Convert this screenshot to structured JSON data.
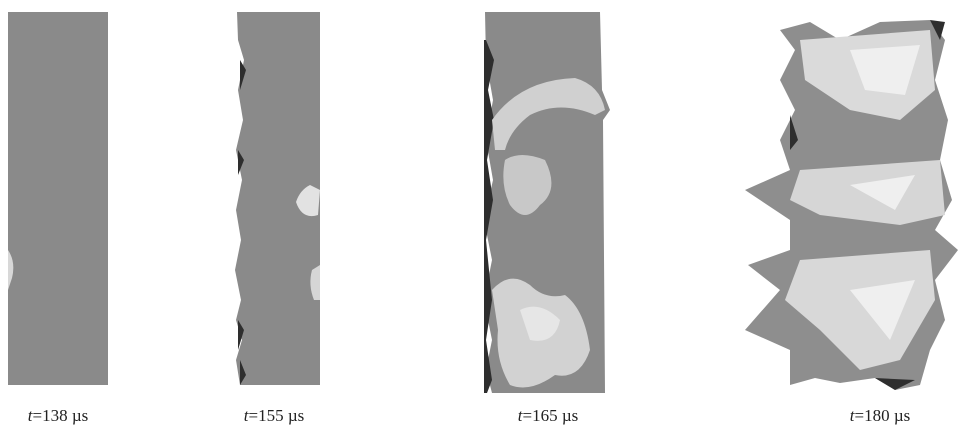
{
  "panels": [
    {
      "symbol": "t",
      "text": "=138 µs"
    },
    {
      "symbol": "t",
      "text": "=155 µs"
    },
    {
      "symbol": "t",
      "text": "=165 µs"
    },
    {
      "symbol": "t",
      "text": "=180 µs"
    }
  ]
}
